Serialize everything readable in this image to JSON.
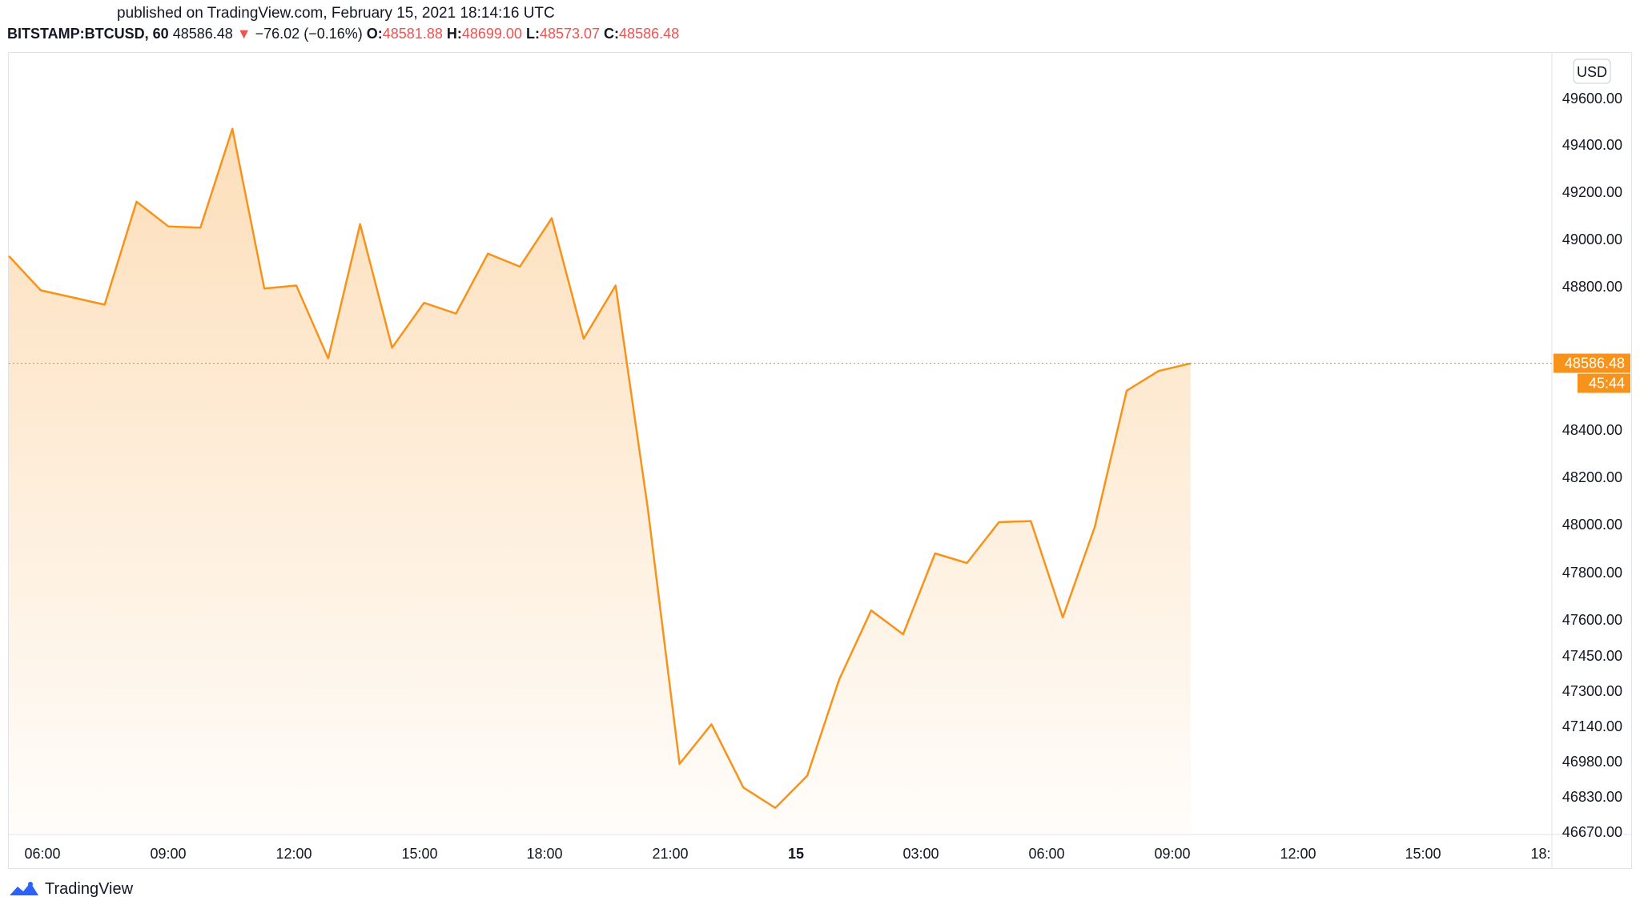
{
  "header": {
    "published": "published on TradingView.com, February 15, 2021 18:14:16 UTC"
  },
  "legend": {
    "symbol": "BITSTAMP:BTCUSD, 60",
    "last": "48586.48",
    "arrow": "▼",
    "change": "−76.02 (−0.16%)",
    "o_label": "O:",
    "o_value": "48581.88",
    "h_label": "H:",
    "h_value": "48699.00",
    "l_label": "L:",
    "l_value": "48573.07",
    "c_label": "C:",
    "c_value": "48586.48"
  },
  "price_axis": {
    "currency": "USD",
    "last_price_label": "48586.48",
    "countdown": "45:44"
  },
  "footer": {
    "brand": "TradingView"
  },
  "colors": {
    "line": "#f7931a",
    "down": "#ef5350",
    "axis_text": "#131722"
  },
  "chart_data": {
    "type": "area",
    "x_tick_labels": [
      "06:00",
      "09:00",
      "12:00",
      "15:00",
      "18:00",
      "21:00",
      "15",
      "03:00",
      "06:00",
      "09:00",
      "12:00",
      "15:00",
      "18:"
    ],
    "y_tick_labels": [
      "49600.00",
      "49400.00",
      "49200.00",
      "49000.00",
      "48800.00",
      "48400.00",
      "48200.00",
      "48000.00",
      "47800.00",
      "47600.00",
      "47450.00",
      "47300.00",
      "47140.00",
      "46980.00",
      "46830.00",
      "46670.00"
    ],
    "last_value": 48586.48,
    "series": [
      {
        "x": [
          "2021-02-14 05:00",
          "2021-02-14 06:00",
          "2021-02-14 07:00",
          "2021-02-14 08:00",
          "2021-02-14 09:00",
          "2021-02-14 10:00",
          "2021-02-14 11:00",
          "2021-02-14 12:00",
          "2021-02-14 13:00",
          "2021-02-14 14:00",
          "2021-02-14 15:00",
          "2021-02-14 16:00",
          "2021-02-14 17:00",
          "2021-02-14 18:00",
          "2021-02-14 19:00",
          "2021-02-14 20:00",
          "2021-02-14 21:00",
          "2021-02-14 22:00",
          "2021-02-14 23:00",
          "2021-02-15 00:00",
          "2021-02-15 01:00",
          "2021-02-15 02:00",
          "2021-02-15 03:00",
          "2021-02-15 04:00",
          "2021-02-15 05:00",
          "2021-02-15 06:00",
          "2021-02-15 07:00",
          "2021-02-15 08:00",
          "2021-02-15 09:00",
          "2021-02-15 10:00",
          "2021-02-15 11:00",
          "2021-02-15 12:00",
          "2021-02-15 13:00",
          "2021-02-15 14:00",
          "2021-02-15 15:00",
          "2021-02-15 16:00",
          "2021-02-15 17:00",
          "2021-02-15 18:00"
        ],
        "values": [
          48930,
          48790,
          48770,
          48750,
          49160,
          49055,
          49050,
          49470,
          48795,
          48805,
          48600,
          49065,
          48630,
          48755,
          48725,
          48940,
          48885,
          49090,
          48655,
          48805,
          48075,
          46970,
          47150,
          46870,
          46780,
          46920,
          47350,
          47640,
          47540,
          47880,
          47840,
          48010,
          48015,
          47610,
          47990,
          48510,
          48565,
          48586
        ]
      }
    ]
  }
}
